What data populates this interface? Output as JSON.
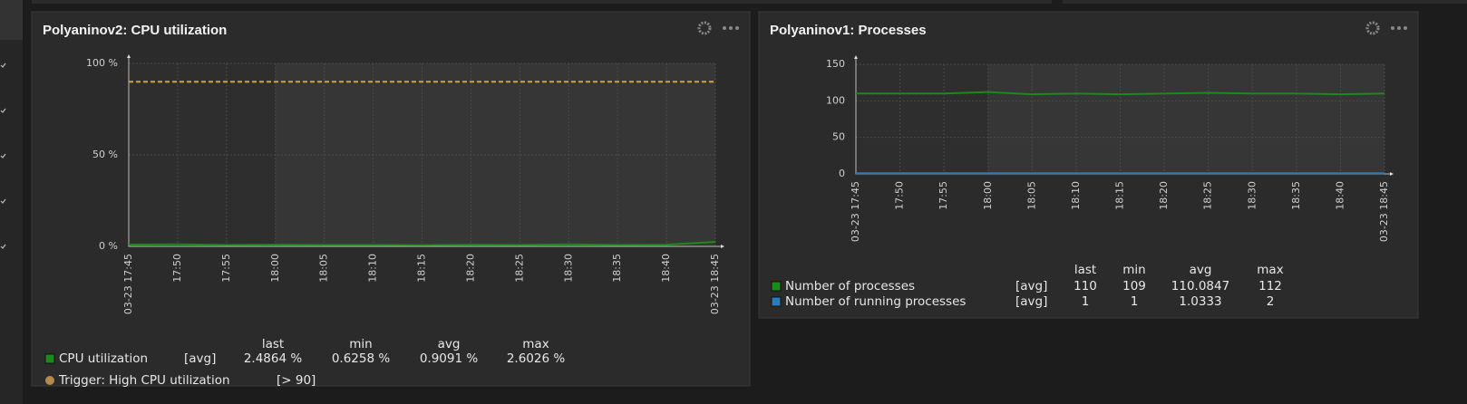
{
  "chart_data": [
    {
      "type": "line",
      "title": "Polyaninov2: CPU utilization",
      "categories": [
        "03-23 17:45",
        "17:50",
        "17:55",
        "18:00",
        "18:05",
        "18:10",
        "18:15",
        "18:20",
        "18:25",
        "18:30",
        "18:35",
        "18:40",
        "03-23 18:45"
      ],
      "category_colors": [
        "#e45959",
        "#cccccc",
        "#cccccc",
        "#e45959",
        "#cccccc",
        "#cccccc",
        "#cccccc",
        "#cccccc",
        "#cccccc",
        "#cccccc",
        "#cccccc",
        "#cccccc",
        "#e45959"
      ],
      "ylim": [
        0,
        100
      ],
      "yticks": [
        {
          "value": 0,
          "label": "0 %"
        },
        {
          "value": 50,
          "label": "50 %"
        },
        {
          "value": 100,
          "label": "100 %"
        }
      ],
      "grid": true,
      "series": [
        {
          "name": "CPU utilization",
          "function": "[avg]",
          "color": "#1a8a1a",
          "values": [
            1.0,
            1.1,
            0.8,
            0.9,
            0.8,
            0.8,
            0.7,
            0.9,
            0.8,
            1.1,
            0.8,
            0.9,
            2.5
          ],
          "stats": [
            "2.4864 %",
            "0.6258 %",
            "0.9091 %",
            "2.6026 %"
          ]
        }
      ],
      "stat_headers": [
        "last",
        "min",
        "avg",
        "max"
      ],
      "trigger": {
        "name": "Trigger: High CPU utilization",
        "label": "[> 90]",
        "value": 90,
        "color": "#d9a040"
      }
    },
    {
      "type": "line",
      "title": "Polyaninov1: Processes",
      "categories": [
        "03-23 17:45",
        "17:50",
        "17:55",
        "18:00",
        "18:05",
        "18:10",
        "18:15",
        "18:20",
        "18:25",
        "18:30",
        "18:35",
        "18:40",
        "03-23 18:45"
      ],
      "category_colors": [
        "#e45959",
        "#cccccc",
        "#cccccc",
        "#e45959",
        "#cccccc",
        "#cccccc",
        "#cccccc",
        "#cccccc",
        "#cccccc",
        "#cccccc",
        "#cccccc",
        "#cccccc",
        "#e45959"
      ],
      "ylim": [
        0,
        150
      ],
      "yticks": [
        0,
        50,
        100,
        150
      ],
      "grid": true,
      "series": [
        {
          "name": "Number of processes",
          "function": "[avg]",
          "color": "#1a8a1a",
          "values": [
            110,
            110,
            110,
            112,
            109,
            110,
            109,
            110,
            111,
            110,
            110,
            109,
            110
          ],
          "stats": [
            110,
            109,
            110.0847,
            112
          ]
        },
        {
          "name": "Number of running processes",
          "function": "[avg]",
          "color": "#2b7bb9",
          "values": [
            1,
            1,
            1,
            1,
            1,
            1,
            1,
            1,
            1,
            1,
            1,
            1,
            1
          ],
          "stats": [
            1,
            1,
            1.0333,
            2
          ]
        }
      ],
      "stat_headers": [
        "last",
        "min",
        "avg",
        "max"
      ]
    }
  ]
}
